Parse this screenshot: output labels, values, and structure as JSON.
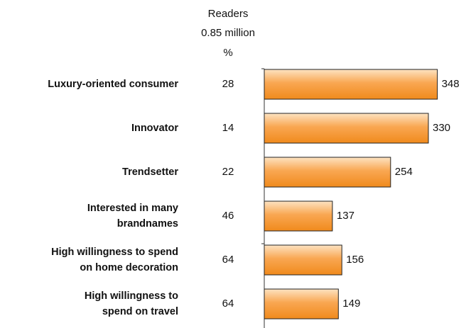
{
  "chart_data": {
    "type": "bar",
    "orientation": "horizontal",
    "readers_label": "Readers",
    "readers_count": "0.85 million",
    "share_unit": "%",
    "categories": [
      [
        "Luxury-oriented consumer"
      ],
      [
        "Innovator"
      ],
      [
        "Trendsetter"
      ],
      [
        "Interested in many",
        "brandnames"
      ],
      [
        "High willingness to spend",
        "on home decoration"
      ],
      [
        "High willingness to",
        "spend on travel"
      ]
    ],
    "shares": [
      28,
      14,
      22,
      46,
      64,
      64
    ],
    "values": [
      348,
      330,
      254,
      137,
      156,
      149
    ],
    "color": "#f7941d",
    "xlim": [
      0,
      400
    ]
  }
}
